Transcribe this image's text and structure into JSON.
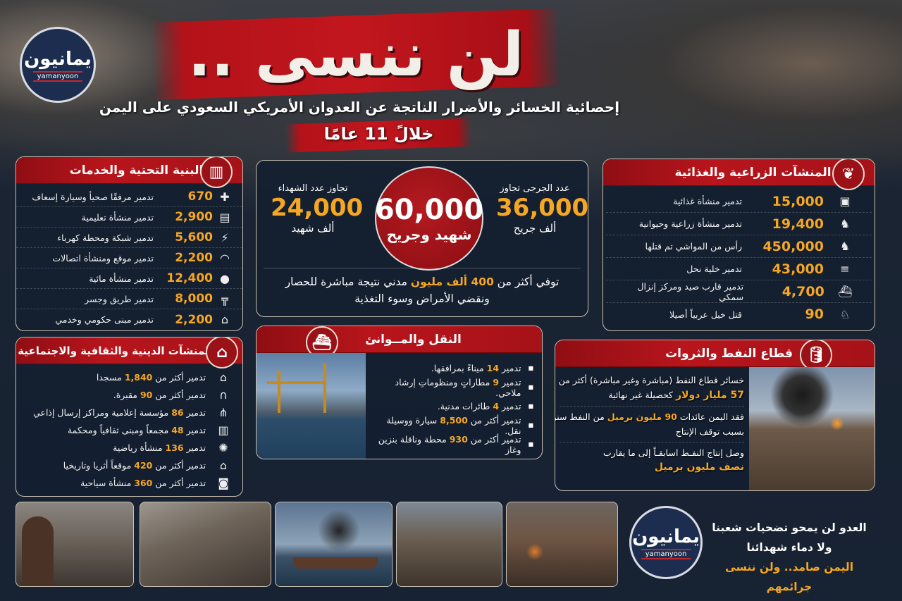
{
  "brand": {
    "logo_ar": "يمانيون",
    "logo_en": "yamanyoon"
  },
  "header": {
    "title": "لن ننسى ..",
    "subtitle": "إحصائية الخسائر والأضرار الناتجة عن العدوان الأمريكي السعودي على اليمن",
    "period": "خلالً 11 عامًا"
  },
  "infrastructure": {
    "title": "البنية التحتية والخدمات",
    "icon": "buildings-icon",
    "rows": [
      {
        "icon": "ambulance-icon",
        "value": "670",
        "label": "تدمير مرفقًا صحيأ وسيارة إسعاف"
      },
      {
        "icon": "book-icon",
        "value": "2,900",
        "label": "تدمير منشأة تعليمية"
      },
      {
        "icon": "lightning-icon",
        "value": "5,600",
        "label": "تدمير شبكة ومحطة كهرباء"
      },
      {
        "icon": "wifi-icon",
        "value": "2,200",
        "label": "تدمير موقع ومنشأة اتصالات"
      },
      {
        "icon": "water-drop-icon",
        "value": "12,400",
        "label": "تدمير منشأة مائية"
      },
      {
        "icon": "bridge-icon",
        "value": "8,000",
        "label": "تدمير طريق وجسر"
      },
      {
        "icon": "government-building-icon",
        "value": "2,200",
        "label": "تدمير مبنى حكومي وخدمي"
      }
    ]
  },
  "religious": {
    "title": "المنشآت الدينية والثقافية والاجتماعية",
    "icon": "mosque-icon",
    "rows": [
      {
        "icon": "mosque-icon",
        "pre": "تدمير أكثر من",
        "value": "1,840",
        "post": "مسجدا"
      },
      {
        "icon": "tombstone-icon",
        "pre": "تدمير أكثر من",
        "value": "90",
        "post": "مقبرة."
      },
      {
        "icon": "antenna-icon",
        "pre": "تدمير",
        "value": "86",
        "post": "مؤسسة إعلامية ومراكز إرسال إذاعي"
      },
      {
        "icon": "buildings-icon",
        "pre": "تدمير",
        "value": "48",
        "post": "مجمعاً ومبنى ثقافياً ومحكمة"
      },
      {
        "icon": "ball-icon",
        "pre": "تدمير",
        "value": "136",
        "post": "منشأة رياضية"
      },
      {
        "icon": "museum-icon",
        "pre": "تدمير أكثر من",
        "value": "420",
        "post": "موقعاً أثريا وتاريخيا"
      },
      {
        "icon": "camera-icon",
        "pre": "تدمير أكثر من",
        "value": "360",
        "post": "منشأة سياحية"
      }
    ]
  },
  "casualties": {
    "wounded_label": "عدد الجرجى تجاوز",
    "wounded_value": "36,000",
    "wounded_unit": "ألف جريح",
    "total_value": "60,000",
    "total_label": "شهيد وجريح",
    "martyrs_label": "تجاوز عدد الشهداء",
    "martyrs_value": "24,000",
    "martyrs_unit": "ألف شهيد",
    "siege_pre": "توفي أكثر من",
    "siege_value": "400 ألف مليون",
    "siege_post": "مدني نتيجة مباشرة للحصار",
    "siege_line2": "ونقضي الأمراض وسوء التغذية"
  },
  "agriculture": {
    "title": "المنشآت الزراعية والغذائية",
    "icon": "wheat-icon",
    "rows": [
      {
        "icon": "food-store-icon",
        "value": "15,000",
        "label": "تدمير منشأة غذائية"
      },
      {
        "icon": "goat-icon",
        "value": "19,400",
        "label": "تدمير منشأة زراعية وحيوانية"
      },
      {
        "icon": "cow-icon",
        "value": "450,000",
        "label": "رأس من المواشي تم قتلها"
      },
      {
        "icon": "beehive-icon",
        "value": "43,000",
        "label": "تدمير خلية نحل"
      },
      {
        "icon": "boat-icon",
        "value": "4,700",
        "label": "تدمير قارب صيد ومركز إنزال سمكي"
      },
      {
        "icon": "horse-icon",
        "value": "90",
        "label": "قتل خيل عربياً أصيلا"
      }
    ]
  },
  "transport": {
    "title": "النقل والمــوانئ",
    "icon": "ship-icon",
    "rows": [
      {
        "pre": "تدمير",
        "value": "14",
        "post": "ميناءً بمرافقها."
      },
      {
        "pre": "تدمير",
        "value": "9",
        "post": "مطاراتٍ ومنظوماتِ إرشاد ملاحي."
      },
      {
        "pre": "تدمير",
        "value": "4",
        "post": "طائرات مدنية."
      },
      {
        "pre": "تدمير أكثر من",
        "value": "8,500",
        "post": "سيارة ووسيلة نقل."
      },
      {
        "pre": "تدمير أكثر من",
        "value": "930",
        "post": "محطة وناقلة بنزين وغاز"
      }
    ]
  },
  "oil": {
    "title": "قطاع النفط والثروات",
    "icon": "oil-barrel-icon",
    "p1_line1": "خسائر قطاع النفط (مباشرة وغير مباشرة) أكثر من",
    "p1_value": "57 مليار دولار",
    "p1_post": "كحصيلة غير نهائية",
    "p2_pre": "فقد اليمن عائدات",
    "p2_value": "90 مليون برميل",
    "p2_post": "من النفط سنوياً",
    "p2_line2": "بسبب توقف الإنتاج",
    "p3_line1": "وصل إنتاج النفـط اسابقـاً إلى ما يقارب",
    "p3_value": "نصف مليون برميل"
  },
  "footer": {
    "line1": "العدو لن يمحو تضحيات شعبنا",
    "line2": "ولا دماء شهدائنا",
    "line3": "اليمن صامد.. ولن ننسى جرائمهم"
  },
  "colors": {
    "accent": "#f5a623",
    "brand_red": "#b4121a",
    "background": "#172232"
  }
}
